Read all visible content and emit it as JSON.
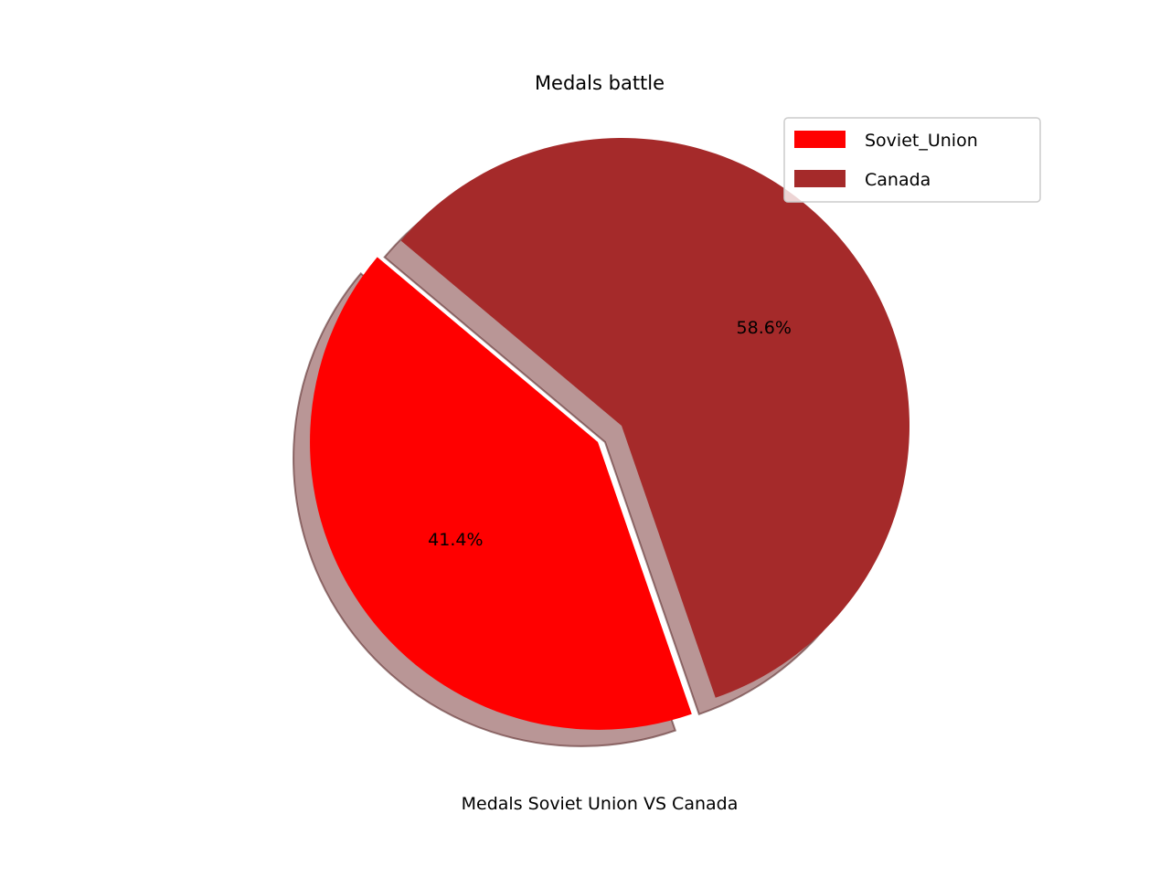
{
  "chart_data": {
    "type": "pie",
    "title": "Medals battle",
    "xlabel": "Medals Soviet Union VS Canada",
    "slices": [
      {
        "label": "Soviet_Union",
        "value": 41.4,
        "pct_label": "41.4%",
        "color": "#ff0000",
        "exploded": true
      },
      {
        "label": "Canada",
        "value": 58.6,
        "pct_label": "58.6%",
        "color": "#a52a2a",
        "exploded": false
      }
    ],
    "start_angle_deg": 140,
    "shadow": true,
    "legend": {
      "position": "top-right",
      "entries": [
        "Soviet_Union",
        "Canada"
      ]
    }
  }
}
